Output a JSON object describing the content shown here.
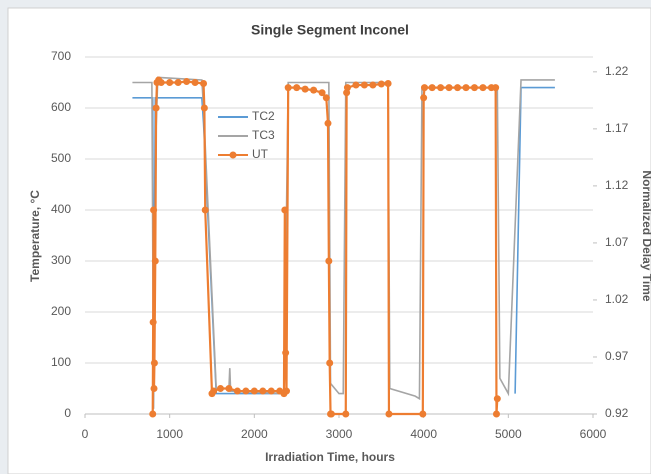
{
  "chart_data": {
    "type": "line",
    "title": "Single Segment Inconel",
    "x_label": "Irradiation Time, hours",
    "y_label": "Temperature, °C",
    "y2_label": "Normalized Delay Time",
    "xlim": [
      0,
      6000
    ],
    "xticks": [
      0,
      1000,
      2000,
      3000,
      4000,
      5000,
      6000
    ],
    "ylim": [
      0,
      700
    ],
    "yticks": [
      0,
      100,
      200,
      300,
      400,
      500,
      600,
      700
    ],
    "y2lim": [
      0.92,
      1.233
    ],
    "y2ticks": [
      0.92,
      0.97,
      1.02,
      1.07,
      1.12,
      1.17,
      1.22
    ],
    "grid": true,
    "legend": "upper-left",
    "series": [
      {
        "name": "TC2",
        "color": "#5b9bd5",
        "markers": false,
        "x": [
          560,
          800,
          810,
          830,
          860,
          1380,
          1400,
          1550,
          2300,
          4900,
          5080,
          5150,
          5550
        ],
        "values": [
          620,
          620,
          50,
          620,
          620,
          620,
          570,
          40,
          40,
          null,
          40,
          640,
          640
        ]
      },
      {
        "name": "TC3",
        "color": "#a5a5a5",
        "markers": false,
        "x": [
          560,
          790,
          810,
          840,
          860,
          1380,
          1400,
          1550,
          1700,
          1710,
          1720,
          2350,
          2380,
          2400,
          2880,
          2900,
          3000,
          3050,
          3080,
          3580,
          3600,
          3900,
          3950,
          3980,
          4870,
          4900,
          5000,
          5150,
          5550
        ],
        "values": [
          650,
          650,
          10,
          560,
          660,
          655,
          600,
          50,
          50,
          90,
          45,
          40,
          400,
          650,
          650,
          60,
          40,
          40,
          650,
          650,
          50,
          35,
          30,
          640,
          640,
          70,
          40,
          655,
          655
        ]
      },
      {
        "name": "UT",
        "color": "#ed7d31",
        "markers": true,
        "x": [
          800,
          805,
          810,
          815,
          820,
          830,
          840,
          850,
          870,
          900,
          1000,
          1100,
          1200,
          1300,
          1400,
          1410,
          1420,
          1500,
          1520,
          1600,
          1700,
          1800,
          1900,
          2000,
          2100,
          2200,
          2300,
          2350,
          2360,
          2370,
          2380,
          2400,
          2500,
          2600,
          2700,
          2800,
          2850,
          2870,
          2880,
          2890,
          2900,
          2910,
          3080,
          3090,
          3100,
          3200,
          3300,
          3400,
          3500,
          3580,
          3590,
          3990,
          4000,
          4010,
          4100,
          4200,
          4300,
          4400,
          4500,
          4600,
          4700,
          4800,
          4850,
          4860,
          4870
        ],
        "values": [
          0,
          180,
          400,
          50,
          100,
          300,
          600,
          650,
          655,
          650,
          650,
          650,
          652,
          650,
          648,
          600,
          400,
          40,
          45,
          50,
          50,
          45,
          45,
          45,
          45,
          45,
          45,
          40,
          400,
          120,
          45,
          640,
          640,
          637,
          635,
          630,
          620,
          570,
          300,
          100,
          0,
          0,
          0,
          630,
          640,
          645,
          645,
          645,
          647,
          648,
          0,
          0,
          620,
          640,
          640,
          640,
          640,
          640,
          640,
          640,
          640,
          640,
          640,
          0,
          30
        ]
      }
    ]
  }
}
